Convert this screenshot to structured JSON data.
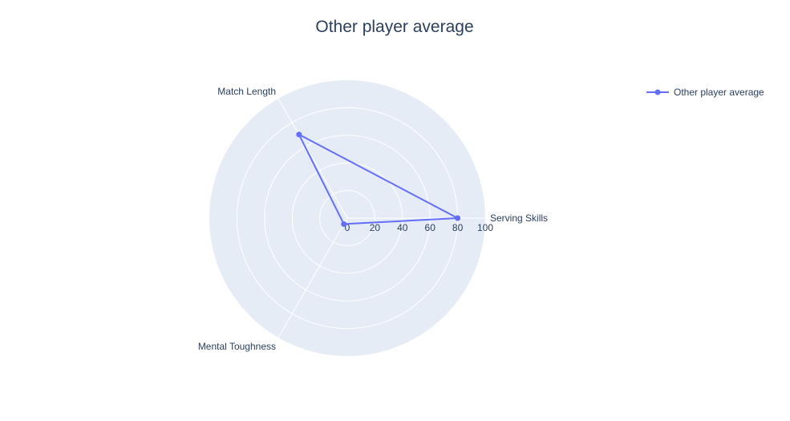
{
  "chart_data": {
    "type": "radar",
    "title": "Other player average",
    "axes": [
      "Serving Skills",
      "Match Length",
      "Mental Toughness"
    ],
    "radial_range": [
      0,
      100
    ],
    "radial_ticks": [
      "0",
      "20",
      "40",
      "60",
      "80",
      "100"
    ],
    "series": [
      {
        "name": "Other player average",
        "values": [
          80,
          70,
          5
        ],
        "color": "#636efa"
      }
    ],
    "grid": true,
    "legend_position": "top-right",
    "background_color": "#e5ecf6"
  }
}
